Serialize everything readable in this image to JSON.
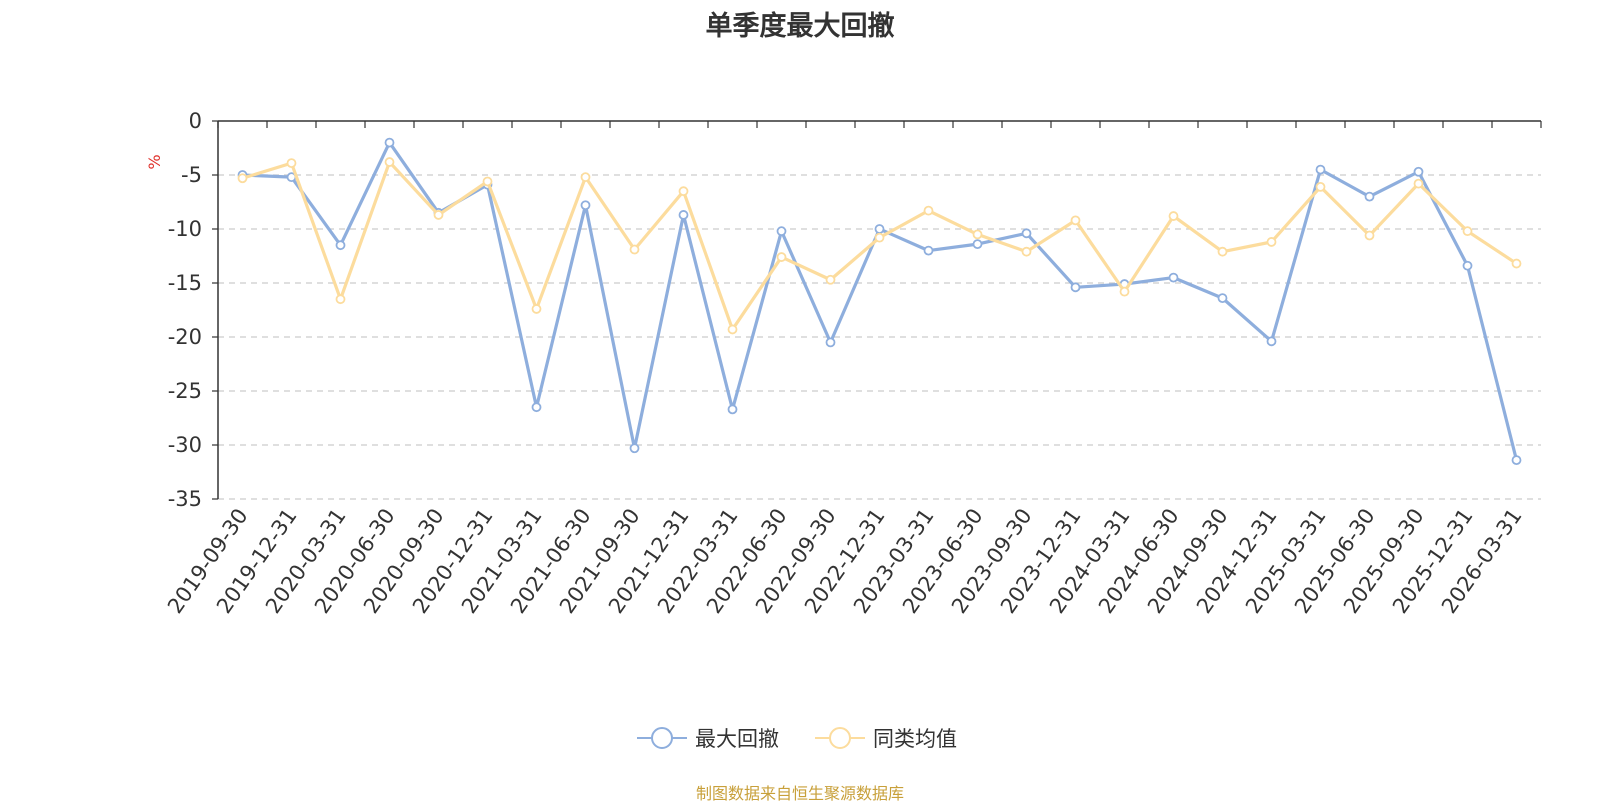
{
  "colors": {
    "series_max_drawdown": "#8eaedd",
    "series_peer_average": "#fcdc9d",
    "axis": "#333333",
    "grid": "#cccccc",
    "ylabel": "#e0312b",
    "source": "#c8a03a"
  },
  "footer": {
    "source_text": "制图数据来自恒生聚源数据库"
  },
  "chart_data": {
    "type": "line",
    "title": "单季度最大回撤",
    "ylabel": "%",
    "xlabel": "",
    "ylim": [
      -35,
      0
    ],
    "yticks": [
      0,
      -5,
      -10,
      -15,
      -20,
      -25,
      -30,
      -35
    ],
    "grid": "horizontal dashed",
    "legend_position": "bottom-center",
    "categories": [
      "2019-09-30",
      "2019-12-31",
      "2020-03-31",
      "2020-06-30",
      "2020-09-30",
      "2020-12-31",
      "2021-03-31",
      "2021-06-30",
      "2021-09-30",
      "2021-12-31",
      "2022-03-31",
      "2022-06-30",
      "2022-09-30",
      "2022-12-31",
      "2023-03-31",
      "2023-06-30",
      "2023-09-30",
      "2023-12-31",
      "2024-03-31",
      "2024-06-30",
      "2024-09-30",
      "2024-12-31",
      "2025-03-31",
      "2025-06-30",
      "2025-09-30",
      "2025-12-31",
      "2026-03-31"
    ],
    "series": [
      {
        "name": "最大回撤",
        "values": [
          -5.0,
          -5.2,
          -11.5,
          -2.0,
          -8.5,
          -5.9,
          -26.5,
          -7.8,
          -30.3,
          -8.7,
          -26.7,
          -10.2,
          -20.5,
          -10.0,
          -12.0,
          -11.4,
          -10.4,
          -15.4,
          -15.1,
          -14.5,
          -16.4,
          -20.4,
          -4.5,
          -7.0,
          -4.7,
          -13.4,
          -31.4
        ]
      },
      {
        "name": "同类均值",
        "values": [
          -5.3,
          -3.9,
          -16.5,
          -3.8,
          -8.7,
          -5.6,
          -17.4,
          -5.2,
          -11.9,
          -6.5,
          -19.3,
          -12.6,
          -14.7,
          -10.8,
          -8.3,
          -10.5,
          -12.1,
          -9.2,
          -15.8,
          -8.8,
          -12.1,
          -11.2,
          -6.1,
          -10.6,
          -5.8,
          -10.2,
          -13.2
        ]
      }
    ]
  }
}
